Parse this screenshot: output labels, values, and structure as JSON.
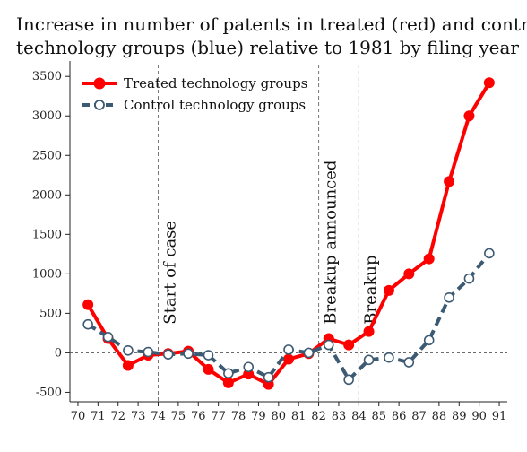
{
  "chart_data": {
    "type": "line",
    "title_lines": [
      "Increase in number of patents in treated (red) and control",
      "technology groups (blue) relative to 1981 by filing year"
    ],
    "xlabel": "",
    "ylabel": "",
    "x": [
      70,
      71,
      72,
      73,
      74,
      75,
      76,
      77,
      78,
      79,
      80,
      81,
      82,
      83,
      84,
      85,
      86,
      87,
      88,
      89,
      90,
      91
    ],
    "x_tick_labels": [
      "70",
      "71",
      "72",
      "73",
      "74",
      "75",
      "76",
      "77",
      "78",
      "79",
      "80",
      "81",
      "82",
      "83",
      "84",
      "85",
      "86",
      "87",
      "88",
      "89",
      "90",
      "91"
    ],
    "xlim": [
      69.6,
      91.4
    ],
    "ylim": [
      -620,
      3650
    ],
    "y_ticks": [
      -500,
      0,
      500,
      1000,
      1500,
      2000,
      2500,
      3000,
      3500
    ],
    "y_tick_labels": [
      "-500",
      "0",
      "500",
      "1000",
      "1500",
      "2000",
      "2500",
      "3000",
      "3500"
    ],
    "series": [
      {
        "name": "Treated technology groups",
        "color": "#ff0000",
        "style": "solid",
        "marker": "filled-circle",
        "x": [
          70.5,
          71.5,
          72.5,
          73.5,
          74.5,
          75.5,
          76.5,
          77.5,
          78.5,
          79.5,
          80.5,
          81.5,
          82.5,
          83.5,
          84.5,
          85.5,
          86.5,
          87.5,
          88.5,
          89.5,
          90.5
        ],
        "values": [
          610,
          180,
          -160,
          -30,
          -10,
          20,
          -210,
          -380,
          -270,
          -400,
          -80,
          -10,
          180,
          100,
          270,
          790,
          1000,
          1190,
          2170,
          3000,
          3420
        ]
      },
      {
        "name": "Control technology groups",
        "color": "#3d5a73",
        "style": "dashed",
        "marker": "hollow-circle",
        "x": [
          70.5,
          71.5,
          72.5,
          73.5,
          74.5,
          75.5,
          76.5,
          77.5,
          78.5,
          79.5,
          80.5,
          81.5,
          82.5,
          83.5,
          84.5,
          85.5,
          86.5,
          87.5,
          88.5,
          89.5,
          90.5
        ],
        "values": [
          360,
          200,
          30,
          10,
          -20,
          -10,
          -30,
          -260,
          -180,
          -310,
          40,
          0,
          100,
          -340,
          -90,
          -60,
          -120,
          160,
          700,
          940,
          1260
        ]
      }
    ],
    "reference_lines": {
      "horizontal_zero": true,
      "vertical": [
        {
          "x": 74,
          "label": "Start of case"
        },
        {
          "x": 82,
          "label": "Breakup announced"
        },
        {
          "x": 84,
          "label": "Breakup"
        }
      ]
    },
    "legend_placement": "top-left",
    "grid": false
  }
}
